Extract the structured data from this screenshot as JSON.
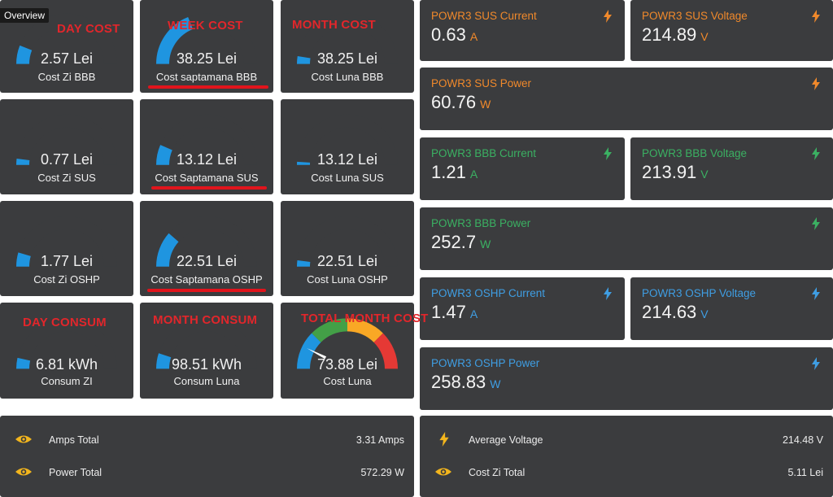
{
  "overview_tab": "Overview",
  "annotations": {
    "day_cost": "DAY COST",
    "week_cost": "WEEK COST",
    "month_cost": "MONTH COST",
    "day_consum": "DAY CONSUM",
    "month_consum": "MONTH CONSUM",
    "total_month_cost": "TOTAL MONTH COST"
  },
  "gauges": [
    {
      "value": "2.57 Lei",
      "name": "Cost Zi BBB",
      "level": 0.12
    },
    {
      "value": "38.25 Lei",
      "name": "Cost saptamana BBB",
      "level": 0.38
    },
    {
      "value": "38.25 Lei",
      "name": "Cost Luna BBB",
      "level": 0.05
    },
    {
      "value": "0.77 Lei",
      "name": "Cost Zi SUS",
      "level": 0.04
    },
    {
      "value": "13.12 Lei",
      "name": "Cost Saptamana SUS",
      "level": 0.13
    },
    {
      "value": "13.12 Lei",
      "name": "Cost Luna SUS",
      "level": 0.02
    },
    {
      "value": "1.77 Lei",
      "name": "Cost Zi OSHP",
      "level": 0.09
    },
    {
      "value": "22.51 Lei",
      "name": "Cost Saptamana OSHP",
      "level": 0.23
    },
    {
      "value": "22.51 Lei",
      "name": "Cost Luna OSHP",
      "level": 0.04
    },
    {
      "value": "6.81 kWh",
      "name": "Consum ZI",
      "level": 0.07
    },
    {
      "value": "98.51 kWh",
      "name": "Consum Luna",
      "level": 0.1
    },
    {
      "value": "73.88 Lei",
      "name": "Cost Luna",
      "level": 0.15
    }
  ],
  "sensors": [
    {
      "title": "POWR3 SUS Current",
      "value": "0.63",
      "unit": "A",
      "color": "#f0892b"
    },
    {
      "title": "POWR3 SUS Voltage",
      "value": "214.89",
      "unit": "V",
      "color": "#f0892b"
    },
    {
      "title": "POWR3 SUS Power",
      "value": "60.76",
      "unit": "W",
      "color": "#f0892b"
    },
    {
      "title": "POWR3 BBB Current",
      "value": "1.21",
      "unit": "A",
      "color": "#3bb062"
    },
    {
      "title": "POWR3 BBB Voltage",
      "value": "213.91",
      "unit": "V",
      "color": "#3bb062"
    },
    {
      "title": "POWR3 BBB Power",
      "value": "252.7",
      "unit": "W",
      "color": "#3bb062"
    },
    {
      "title": "POWR3 OSHP Current",
      "value": "1.47",
      "unit": "A",
      "color": "#3f9ee3"
    },
    {
      "title": "POWR3 OSHP Voltage",
      "value": "214.63",
      "unit": "V",
      "color": "#3f9ee3"
    },
    {
      "title": "POWR3 OSHP Power",
      "value": "258.83",
      "unit": "W",
      "color": "#3f9ee3"
    }
  ],
  "entities_left": [
    {
      "label": "Amps Total",
      "value": "3.31 Amps",
      "icon": "eye-icon"
    },
    {
      "label": "Power Total",
      "value": "572.29 W",
      "icon": "eye-icon"
    }
  ],
  "entities_right": [
    {
      "label": "Average Voltage",
      "value": "214.48 V",
      "icon": "flash-icon"
    },
    {
      "label": "Cost Zi Total",
      "value": "5.11 Lei",
      "icon": "eye-icon"
    }
  ],
  "colors": {
    "gauge_fill": "#1f95e0",
    "icon_yellow": "#f2b51d",
    "annotation_red": "#e2262b"
  }
}
